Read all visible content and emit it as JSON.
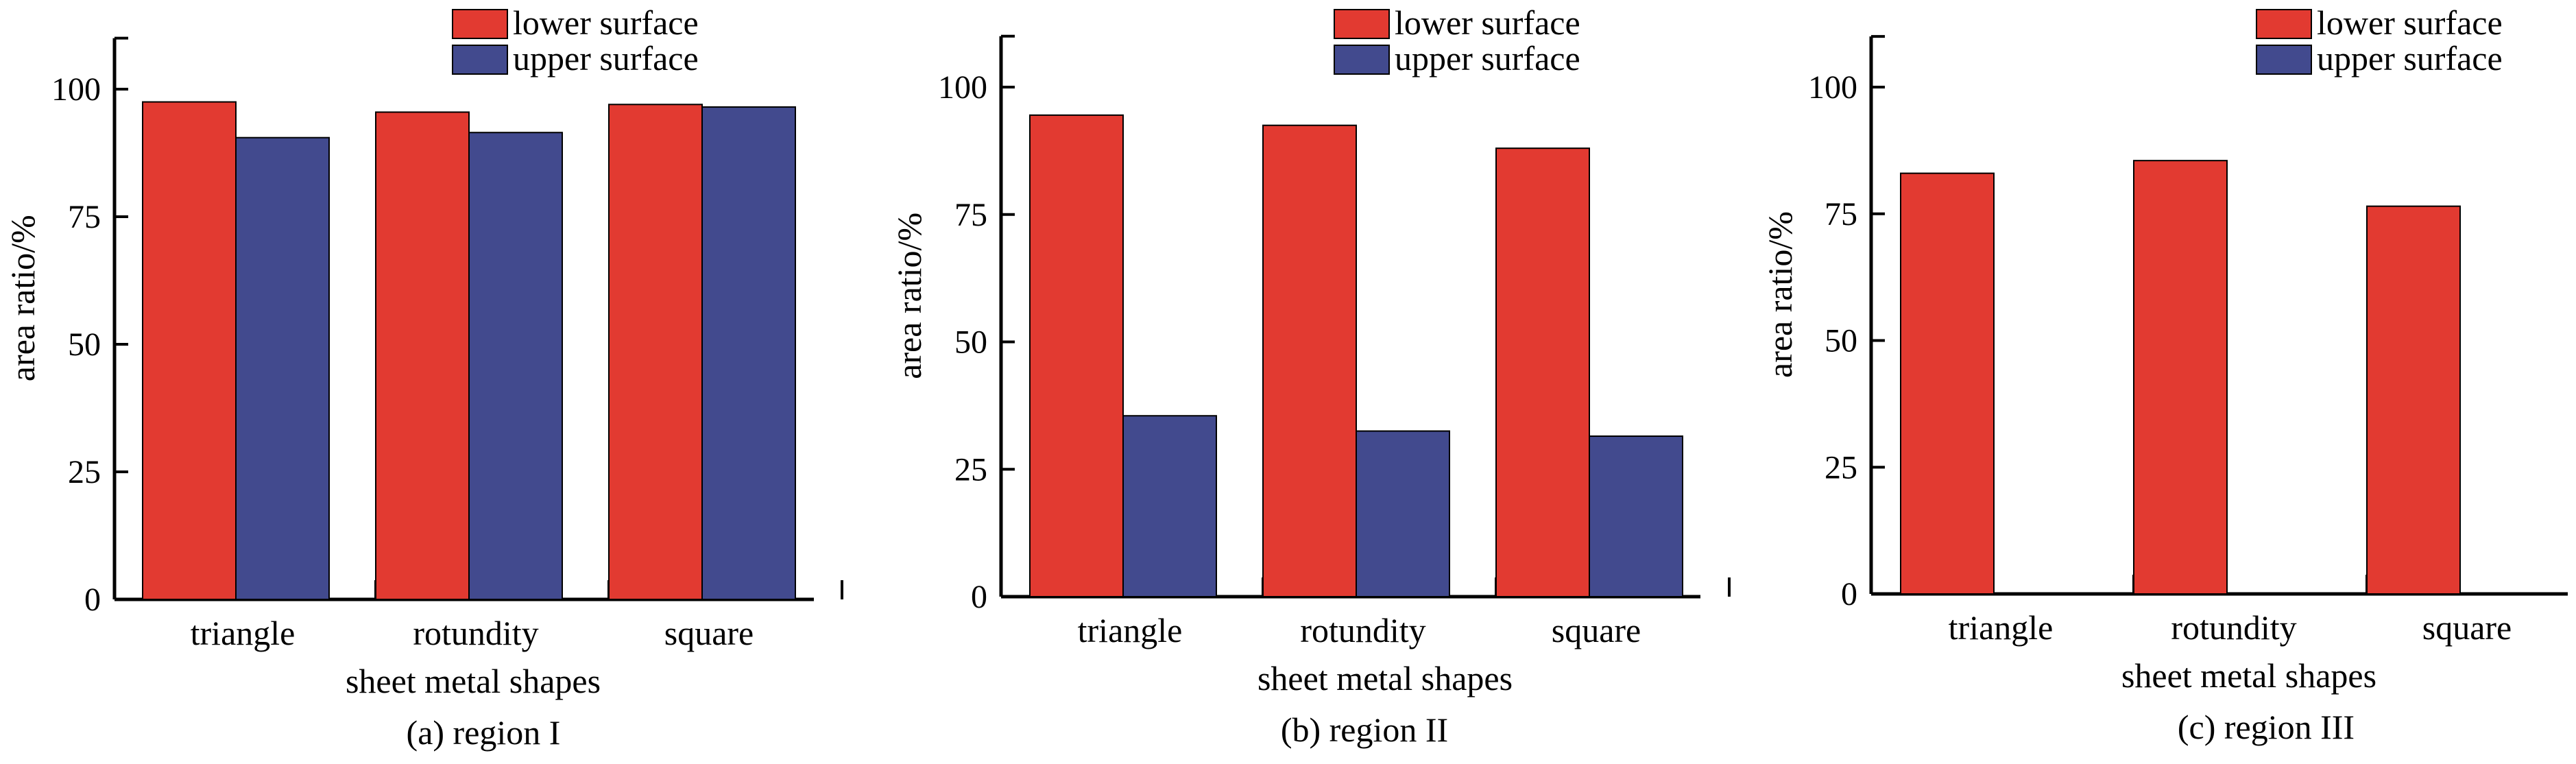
{
  "colors": {
    "lower_surface": "#e23a31",
    "upper_surface": "#424a8e",
    "axis": "#000000",
    "background": "#ffffff"
  },
  "chart_data": [
    {
      "type": "bar",
      "caption": "(a) region I",
      "xlabel": "sheet metal shapes",
      "ylabel": "area ratio/%",
      "categories": [
        "triangle",
        "rotundity",
        "square"
      ],
      "ylim": [
        0,
        110
      ],
      "yticks": [
        0,
        25,
        50,
        75,
        100
      ],
      "grid": false,
      "legend_position": "top-right",
      "series": [
        {
          "name": "lower surface",
          "color": "#e23a31",
          "values": [
            97.5,
            95.5,
            97
          ]
        },
        {
          "name": "upper surface",
          "color": "#424a8e",
          "values": [
            90.5,
            91.5,
            96.5
          ]
        }
      ]
    },
    {
      "type": "bar",
      "caption": "(b) region II",
      "xlabel": "sheet metal shapes",
      "ylabel": "area ratio/%",
      "categories": [
        "triangle",
        "rotundity",
        "square"
      ],
      "ylim": [
        0,
        110
      ],
      "yticks": [
        0,
        25,
        50,
        75,
        100
      ],
      "grid": false,
      "legend_position": "top-right",
      "series": [
        {
          "name": "lower surface",
          "color": "#e23a31",
          "values": [
            94.5,
            92.5,
            88
          ]
        },
        {
          "name": "upper surface",
          "color": "#424a8e",
          "values": [
            35.5,
            32.5,
            31.5
          ]
        }
      ]
    },
    {
      "type": "bar",
      "caption": "(c) region III",
      "xlabel": "sheet metal shapes",
      "ylabel": "area ratio/%",
      "categories": [
        "triangle",
        "rotundity",
        "square"
      ],
      "ylim": [
        0,
        110
      ],
      "yticks": [
        0,
        25,
        50,
        75,
        100
      ],
      "grid": false,
      "legend_position": "top-right",
      "series": [
        {
          "name": "lower surface",
          "color": "#e23a31",
          "values": [
            83,
            85.5,
            76.5
          ]
        },
        {
          "name": "upper surface",
          "color": "#424a8e",
          "values": [
            0,
            0,
            0
          ]
        }
      ]
    }
  ]
}
